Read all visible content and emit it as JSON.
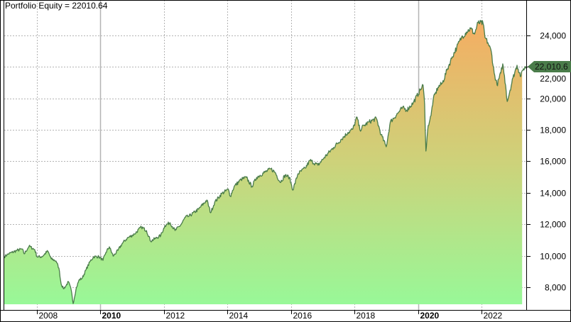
{
  "chart_data": {
    "type": "area",
    "title": "Portfolio Equity = 22010.64",
    "current_value_label": "22,010.6",
    "xlim": [
      2006.97,
      2023.41
    ],
    "ylim": [
      6560,
      26245
    ],
    "fill_baseline": 6920,
    "grid": true,
    "y_axis_side": "right",
    "x_ticks": [
      {
        "year": 2008,
        "label": "2008",
        "bold": false
      },
      {
        "year": 2010,
        "label": "2010",
        "bold": true
      },
      {
        "year": 2012,
        "label": "2012",
        "bold": false
      },
      {
        "year": 2014,
        "label": "2014",
        "bold": false
      },
      {
        "year": 2016,
        "label": "2016",
        "bold": false
      },
      {
        "year": 2018,
        "label": "2018",
        "bold": false
      },
      {
        "year": 2020,
        "label": "2020",
        "bold": true
      },
      {
        "year": 2022,
        "label": "2022",
        "bold": false
      }
    ],
    "y_ticks": [
      {
        "value": 8000,
        "label": "8,000"
      },
      {
        "value": 10000,
        "label": "10,000"
      },
      {
        "value": 12000,
        "label": "12,000"
      },
      {
        "value": 14000,
        "label": "14,000"
      },
      {
        "value": 16000,
        "label": "16,000"
      },
      {
        "value": 18000,
        "label": "18,000"
      },
      {
        "value": 20000,
        "label": "20,000"
      },
      {
        "value": 22000,
        "label": "22,000"
      },
      {
        "value": 24000,
        "label": "24,000"
      }
    ],
    "colors": {
      "line": "#4a7c4a",
      "fill_top": "#f5ad62",
      "fill_mid": "#cdd27a",
      "fill_bottom": "#98f898",
      "grid": "#b4b4b4",
      "value_tag": "#4a7c4a"
    },
    "series": [
      {
        "x": [
          2006.97,
          2007.1,
          2007.37,
          2007.53,
          2007.6,
          2007.75,
          2007.93,
          2008.0,
          2008.16,
          2008.34,
          2008.45,
          2008.6,
          2008.69,
          2008.76,
          2008.83,
          2008.9,
          2008.99,
          2009.08,
          2009.14,
          2009.23,
          2009.32,
          2009.43,
          2009.55,
          2009.68,
          2009.79,
          2009.95,
          2010.08,
          2010.17,
          2010.28,
          2010.4,
          2010.55,
          2010.69,
          2010.84,
          2011.07,
          2011.29,
          2011.45,
          2011.58,
          2011.74,
          2011.9,
          2012.03,
          2012.19,
          2012.35,
          2012.53,
          2012.68,
          2012.79,
          2013.09,
          2013.35,
          2013.47,
          2013.6,
          2013.82,
          2014.03,
          2014.09,
          2014.21,
          2014.43,
          2014.59,
          2014.77,
          2014.92,
          2015.17,
          2015.37,
          2015.5,
          2015.66,
          2015.82,
          2015.95,
          2016.06,
          2016.22,
          2016.45,
          2016.6,
          2016.85,
          2017.05,
          2017.34,
          2017.57,
          2017.79,
          2017.95,
          2018.08,
          2018.17,
          2018.3,
          2018.46,
          2018.69,
          2018.84,
          2019.0,
          2019.13,
          2019.36,
          2019.51,
          2019.65,
          2019.85,
          2020.07,
          2020.16,
          2020.21,
          2020.25,
          2020.32,
          2020.41,
          2020.48,
          2020.63,
          2020.77,
          2020.93,
          2021.08,
          2021.22,
          2021.37,
          2021.53,
          2021.66,
          2021.78,
          2021.89,
          2022.05,
          2022.11,
          2022.2,
          2022.31,
          2022.4,
          2022.49,
          2022.61,
          2022.67,
          2022.76,
          2022.81,
          2022.9,
          2022.99,
          2023.12,
          2023.24,
          2023.32,
          2023.41
        ],
        "values": [
          9940,
          10120,
          10340,
          10430,
          10120,
          10610,
          10390,
          9940,
          9940,
          10300,
          9800,
          9670,
          9220,
          8230,
          7910,
          8050,
          8360,
          7820,
          6960,
          7870,
          8450,
          8590,
          9130,
          9670,
          9940,
          9940,
          9710,
          10210,
          10570,
          9980,
          10340,
          10790,
          11110,
          11380,
          11830,
          11600,
          10930,
          11110,
          11290,
          11920,
          12100,
          11600,
          11960,
          12460,
          12510,
          12960,
          13540,
          12730,
          13410,
          13950,
          14220,
          13770,
          14400,
          14850,
          14980,
          14400,
          14980,
          15300,
          15520,
          15300,
          14670,
          15120,
          14980,
          14170,
          15210,
          15570,
          16060,
          15750,
          16240,
          16880,
          17370,
          17820,
          18050,
          18810,
          18000,
          18270,
          18500,
          18720,
          17690,
          16920,
          18500,
          19040,
          19400,
          19260,
          19710,
          20520,
          20840,
          19620,
          16650,
          18270,
          18900,
          19940,
          20700,
          20970,
          21880,
          22640,
          23230,
          23860,
          24220,
          24440,
          24080,
          24800,
          24760,
          23860,
          23540,
          22960,
          21610,
          20840,
          21610,
          22190,
          20840,
          19800,
          20520,
          21290,
          22100,
          21380,
          21880,
          22010.64
        ]
      }
    ]
  }
}
